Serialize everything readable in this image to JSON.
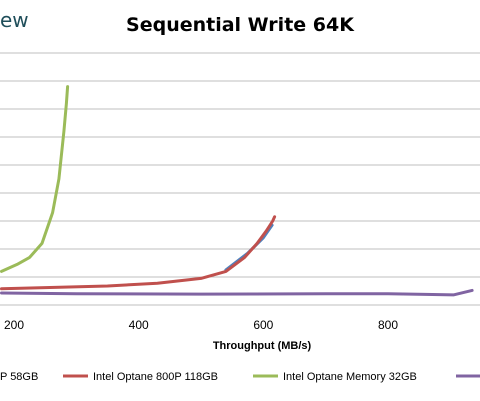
{
  "watermark": "ew",
  "chart_data": {
    "type": "line",
    "title": "Sequential Write 64K",
    "xlabel": "Throughput (MB/s)",
    "ylabel": "",
    "x_ticks": [
      200,
      400,
      600,
      800
    ],
    "xlim": [
      180,
      935
    ],
    "ylim": [
      0,
      100
    ],
    "y_gridlines": [
      0,
      10,
      20,
      30,
      40,
      50,
      60,
      70,
      80,
      90
    ],
    "grid": true,
    "legend_position": "bottom",
    "series": [
      {
        "name": "Intel Optane 800P 118GB",
        "color": "#c0504d",
        "points": [
          [
            180,
            5.8
          ],
          [
            250,
            6.2
          ],
          [
            350,
            6.8
          ],
          [
            430,
            7.8
          ],
          [
            500,
            9.5
          ],
          [
            540,
            12
          ],
          [
            570,
            17
          ],
          [
            590,
            22
          ],
          [
            605,
            26.5
          ],
          [
            615,
            30
          ],
          [
            618,
            31.5
          ]
        ]
      },
      {
        "name": "Intel Optane Memory 32GB",
        "color": "#9bbb59",
        "points": [
          [
            180,
            12
          ],
          [
            205,
            14.5
          ],
          [
            225,
            17
          ],
          [
            245,
            22
          ],
          [
            262,
            33
          ],
          [
            272,
            45
          ],
          [
            280,
            62
          ],
          [
            284,
            72
          ],
          [
            286,
            78
          ]
        ]
      },
      {
        "name": "",
        "color": "#8064a2",
        "points": [
          [
            180,
            4.3
          ],
          [
            300,
            4.0
          ],
          [
            500,
            3.9
          ],
          [
            700,
            4.0
          ],
          [
            800,
            4.0
          ],
          [
            860,
            3.8
          ],
          [
            905,
            3.6
          ],
          [
            935,
            5.2
          ]
        ]
      },
      {
        "name": "",
        "color": "#4f81bd",
        "points": [
          [
            540,
            12.5
          ],
          [
            575,
            18.5
          ],
          [
            600,
            24
          ],
          [
            614,
            28.5
          ]
        ]
      }
    ],
    "legend": [
      {
        "label": "P 58GB",
        "color": "#4f81bd"
      },
      {
        "label": "Intel Optane 800P 118GB",
        "color": "#c0504d"
      },
      {
        "label": "Intel Optane Memory 32GB",
        "color": "#9bbb59"
      },
      {
        "label": "",
        "color": "#8064a2"
      }
    ]
  }
}
